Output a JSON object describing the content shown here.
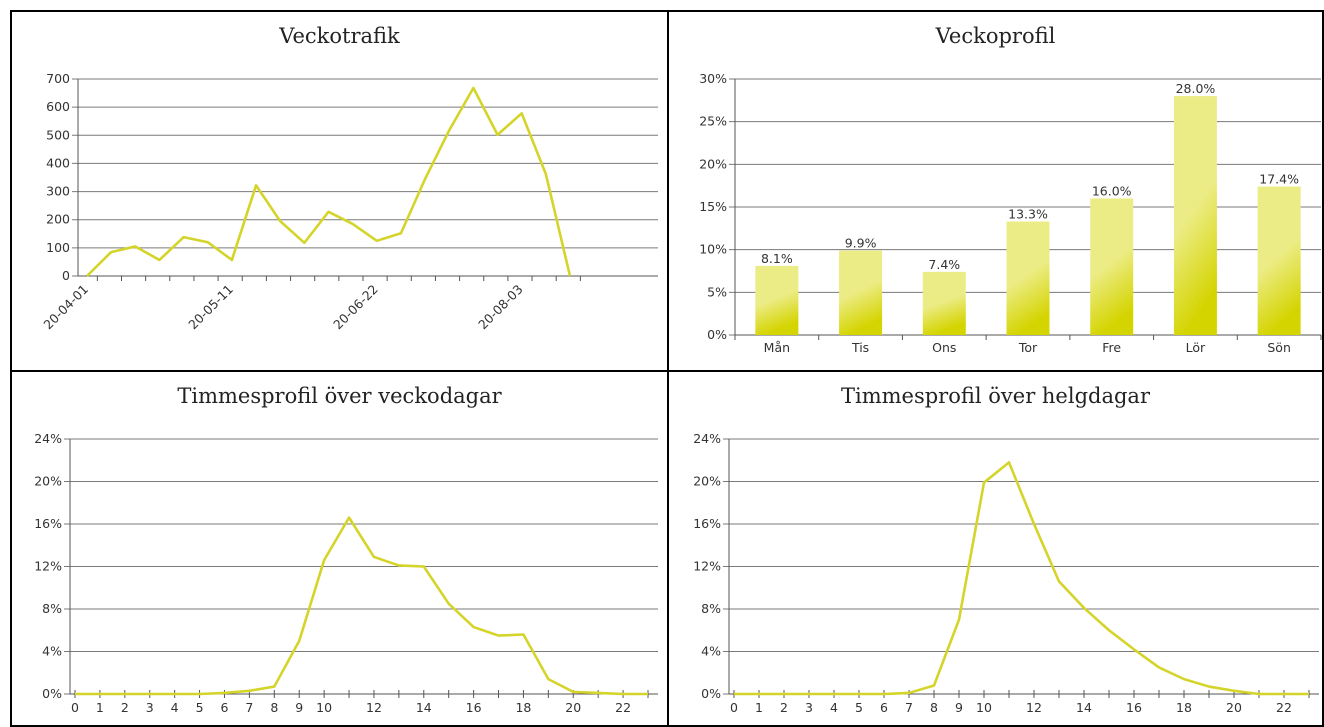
{
  "colors": {
    "line": "#d4d42a",
    "bar_top": "#ecec86",
    "bar_bottom": "#d4d400",
    "grid": "#7a7a7a"
  },
  "chart_data": [
    {
      "id": "veckotrafik",
      "type": "line",
      "title": "Veckotrafik",
      "x_tick_labels": [
        "20-04-01",
        "20-05-11",
        "20-06-22",
        "20-08-03"
      ],
      "x_tick_indices": [
        0,
        6,
        12,
        18
      ],
      "values": [
        0,
        85,
        105,
        57,
        138,
        120,
        57,
        322,
        195,
        118,
        228,
        185,
        125,
        152,
        345,
        518,
        668,
        502,
        578,
        362,
        0
      ],
      "ylim": [
        0,
        700
      ],
      "y_ticks": [
        "0",
        "100",
        "200",
        "300",
        "400",
        "500",
        "600",
        "700"
      ],
      "grid": true
    },
    {
      "id": "veckoprofil",
      "type": "bar",
      "title": "Veckoprofil",
      "categories": [
        "Mån",
        "Tis",
        "Ons",
        "Tor",
        "Fre",
        "Lör",
        "Sön"
      ],
      "values": [
        8.1,
        9.9,
        7.4,
        13.3,
        16.0,
        28.0,
        17.4
      ],
      "data_labels": [
        "8.1%",
        "9.9%",
        "7.4%",
        "13.3%",
        "16.0%",
        "28.0%",
        "17.4%"
      ],
      "ylim": [
        0,
        30
      ],
      "y_ticks": [
        "0%",
        "5%",
        "10%",
        "15%",
        "20%",
        "25%",
        "30%"
      ],
      "grid": true
    },
    {
      "id": "timmes-vecko",
      "type": "line",
      "title": "Timmesprofil över veckodagar",
      "x": [
        0,
        1,
        2,
        3,
        4,
        5,
        6,
        7,
        8,
        9,
        10,
        11,
        12,
        13,
        14,
        15,
        16,
        17,
        18,
        19,
        20,
        21,
        22,
        23
      ],
      "x_tick_labels": [
        "0",
        "1",
        "2",
        "3",
        "4",
        "5",
        "6",
        "7",
        "8",
        "9",
        "10",
        "12",
        "14",
        "16",
        "18",
        "20",
        "22"
      ],
      "values": [
        0,
        0,
        0,
        0,
        0,
        0,
        0.1,
        0.3,
        0.7,
        5.0,
        12.6,
        16.6,
        12.9,
        12.1,
        12.0,
        8.5,
        6.3,
        5.5,
        5.6,
        1.4,
        0.2,
        0.1,
        0,
        0
      ],
      "ylim": [
        0,
        24
      ],
      "y_ticks": [
        "0%",
        "4%",
        "8%",
        "12%",
        "16%",
        "20%",
        "24%"
      ],
      "grid": true
    },
    {
      "id": "timmes-helg",
      "type": "line",
      "title": "Timmesprofil över helgdagar",
      "x": [
        0,
        1,
        2,
        3,
        4,
        5,
        6,
        7,
        8,
        9,
        10,
        11,
        12,
        13,
        14,
        15,
        16,
        17,
        18,
        19,
        20,
        21,
        22,
        23
      ],
      "x_tick_labels": [
        "0",
        "1",
        "2",
        "3",
        "4",
        "5",
        "6",
        "7",
        "8",
        "9",
        "10",
        "12",
        "14",
        "16",
        "18",
        "20",
        "22"
      ],
      "values": [
        0,
        0,
        0,
        0,
        0,
        0,
        0,
        0.1,
        0.8,
        7.0,
        19.9,
        21.8,
        16.0,
        10.6,
        8.1,
        6.0,
        4.2,
        2.5,
        1.4,
        0.7,
        0.3,
        0,
        0,
        0
      ],
      "ylim": [
        0,
        24
      ],
      "y_ticks": [
        "0%",
        "4%",
        "8%",
        "12%",
        "16%",
        "20%",
        "24%"
      ],
      "grid": true
    }
  ]
}
